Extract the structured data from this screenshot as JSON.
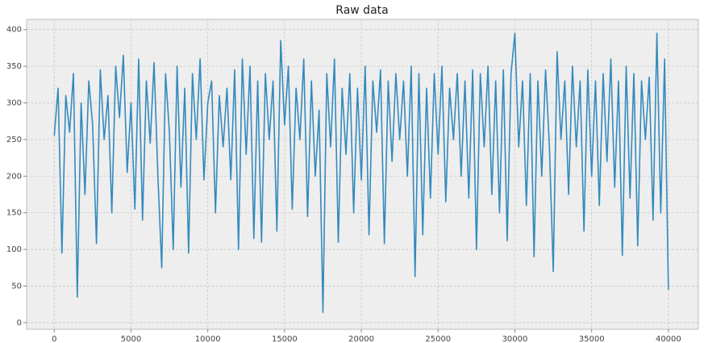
{
  "chart_data": {
    "type": "line",
    "title": "Raw data",
    "x": [
      0,
      250,
      500,
      750,
      1000,
      1250,
      1500,
      1750,
      2000,
      2250,
      2500,
      2750,
      3000,
      3250,
      3500,
      3750,
      4000,
      4250,
      4500,
      4750,
      5000,
      5250,
      5500,
      5750,
      6000,
      6250,
      6500,
      6750,
      7000,
      7250,
      7500,
      7750,
      8000,
      8250,
      8500,
      8750,
      9000,
      9250,
      9500,
      9750,
      10000,
      10250,
      10500,
      10750,
      11000,
      11250,
      11500,
      11750,
      12000,
      12250,
      12500,
      12750,
      13000,
      13250,
      13500,
      13750,
      14000,
      14250,
      14500,
      14750,
      15000,
      15250,
      15500,
      15750,
      16000,
      16250,
      16500,
      16750,
      17000,
      17250,
      17500,
      17750,
      18000,
      18250,
      18500,
      18750,
      19000,
      19250,
      19500,
      19750,
      20000,
      20250,
      20500,
      20750,
      21000,
      21250,
      21500,
      21750,
      22000,
      22250,
      22500,
      22750,
      23000,
      23250,
      23500,
      23750,
      24000,
      24250,
      24500,
      24750,
      25000,
      25250,
      25500,
      25750,
      26000,
      26250,
      26500,
      26750,
      27000,
      27250,
      27500,
      27750,
      28000,
      28250,
      28500,
      28750,
      29000,
      29250,
      29500,
      29750,
      30000,
      30250,
      30500,
      30750,
      31000,
      31250,
      31500,
      31750,
      32000,
      32250,
      32500,
      32750,
      33000,
      33250,
      33500,
      33750,
      34000,
      34250,
      34500,
      34750,
      35000,
      35250,
      35500,
      35750,
      36000,
      36250,
      36500,
      36750,
      37000,
      37250,
      37500,
      37750,
      38000,
      38250,
      38500,
      38750,
      39000,
      39250,
      39500,
      39750,
      39999
    ],
    "series": [
      {
        "color": "#348abd",
        "values": [
          255,
          320,
          95,
          310,
          260,
          340,
          35,
          300,
          175,
          330,
          270,
          108,
          345,
          250,
          310,
          150,
          350,
          280,
          365,
          205,
          300,
          155,
          360,
          140,
          330,
          245,
          355,
          200,
          75,
          340,
          260,
          100,
          350,
          185,
          320,
          95,
          340,
          250,
          360,
          195,
          300,
          330,
          150,
          310,
          240,
          320,
          195,
          345,
          100,
          360,
          230,
          350,
          115,
          330,
          110,
          340,
          250,
          330,
          125,
          385,
          270,
          350,
          155,
          320,
          250,
          360,
          145,
          330,
          200,
          290,
          14,
          340,
          240,
          360,
          110,
          320,
          230,
          340,
          150,
          320,
          195,
          350,
          120,
          330,
          260,
          345,
          108,
          330,
          220,
          340,
          250,
          330,
          200,
          350,
          63,
          340,
          120,
          320,
          170,
          340,
          230,
          350,
          165,
          320,
          250,
          340,
          200,
          330,
          170,
          345,
          100,
          340,
          240,
          350,
          175,
          330,
          150,
          345,
          112,
          340,
          395,
          240,
          330,
          160,
          340,
          90,
          330,
          200,
          345,
          240,
          70,
          370,
          250,
          330,
          175,
          350,
          240,
          330,
          125,
          345,
          200,
          330,
          160,
          340,
          220,
          360,
          185,
          330,
          92,
          350,
          170,
          340,
          105,
          330,
          250,
          335,
          140,
          395,
          150,
          360,
          45
        ]
      }
    ],
    "xlim": [
      -1800,
      41950
    ],
    "ylim": [
      -9,
      414
    ],
    "xticks": [
      0,
      5000,
      10000,
      15000,
      20000,
      25000,
      30000,
      35000,
      40000
    ],
    "yticks": [
      0,
      50,
      100,
      150,
      200,
      250,
      300,
      350,
      400
    ],
    "grid": true
  }
}
